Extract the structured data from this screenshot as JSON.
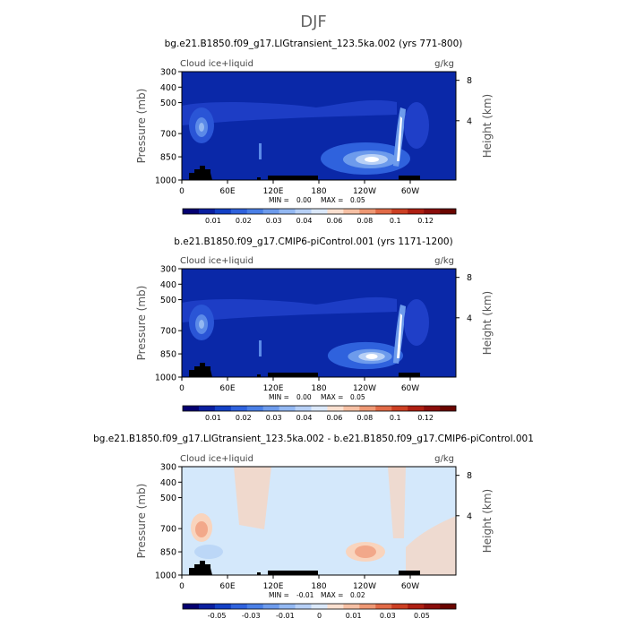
{
  "page": {
    "title": "DJF"
  },
  "colors": {
    "base_blue": "#0a28a8",
    "diff_base": "#d4e8fb",
    "contour_light": "#bcd7f7",
    "warm_light": "#f9d4bd",
    "warm_mid": "#f2a88a",
    "land_mask": "#000000"
  },
  "chart_data": [
    {
      "type": "heatmap",
      "title": "bg.e21.B1850.f09_g17.LIGtransient_123.5ka.002 (yrs 771-800)",
      "field_label": "Cloud ice+liquid",
      "units": "g/kg",
      "ylabel": "Pressure (mb)",
      "ylabel_right": "Height (km)",
      "x_ticks": [
        "0",
        "60E",
        "120E",
        "180",
        "120W",
        "60W"
      ],
      "x_tick_values": [
        0,
        60,
        120,
        180,
        240,
        300
      ],
      "xlim": [
        0,
        360
      ],
      "y_ticks": [
        "300",
        "400",
        "500",
        "700",
        "850",
        "1000"
      ],
      "y_tick_values": [
        300,
        400,
        500,
        700,
        850,
        1000
      ],
      "ylim": [
        300,
        1000
      ],
      "height_ticks": [
        "8",
        "4"
      ],
      "height_tick_pressure": [
        356,
        617
      ],
      "stats": {
        "min_label": "MIN =",
        "min": "0.00",
        "max_label": "MAX =",
        "max": "0.05"
      },
      "colorbar": {
        "labels": [
          "0.01",
          "0.02",
          "0.03",
          "0.04",
          "0.06",
          "0.08",
          "0.1",
          "0.12"
        ],
        "colors": [
          "#040070",
          "#0a1f9f",
          "#1340c5",
          "#2f62dd",
          "#4a7fe6",
          "#6d9bec",
          "#93b8f2",
          "#b7d0f6",
          "#dbe8fa",
          "#fbe0d0",
          "#f6c0a4",
          "#ee9874",
          "#e16a47",
          "#cc3f23",
          "#ae1f12",
          "#8a0d0b",
          "#6a0500"
        ]
      }
    },
    {
      "type": "heatmap",
      "title": "b.e21.B1850.f09_g17.CMIP6-piControl.001 (yrs 1171-1200)",
      "field_label": "Cloud ice+liquid",
      "units": "g/kg",
      "ylabel": "Pressure (mb)",
      "ylabel_right": "Height (km)",
      "x_ticks": [
        "0",
        "60E",
        "120E",
        "180",
        "120W",
        "60W"
      ],
      "x_tick_values": [
        0,
        60,
        120,
        180,
        240,
        300
      ],
      "xlim": [
        0,
        360
      ],
      "y_ticks": [
        "300",
        "400",
        "500",
        "700",
        "850",
        "1000"
      ],
      "y_tick_values": [
        300,
        400,
        500,
        700,
        850,
        1000
      ],
      "ylim": [
        300,
        1000
      ],
      "height_ticks": [
        "8",
        "4"
      ],
      "height_tick_pressure": [
        356,
        617
      ],
      "stats": {
        "min_label": "MIN =",
        "min": "0.00",
        "max_label": "MAX =",
        "max": "0.05"
      },
      "colorbar": {
        "labels": [
          "0.01",
          "0.02",
          "0.03",
          "0.04",
          "0.06",
          "0.08",
          "0.1",
          "0.12"
        ],
        "colors": [
          "#040070",
          "#0a1f9f",
          "#1340c5",
          "#2f62dd",
          "#4a7fe6",
          "#6d9bec",
          "#93b8f2",
          "#b7d0f6",
          "#dbe8fa",
          "#fbe0d0",
          "#f6c0a4",
          "#ee9874",
          "#e16a47",
          "#cc3f23",
          "#ae1f12",
          "#8a0d0b",
          "#6a0500"
        ]
      }
    },
    {
      "type": "heatmap",
      "title": "bg.e21.B1850.f09_g17.LIGtransient_123.5ka.002 - b.e21.B1850.f09_g17.CMIP6-piControl.001",
      "field_label": "Cloud ice+liquid",
      "units": "g/kg",
      "ylabel": "Pressure (mb)",
      "ylabel_right": "Height (km)",
      "x_ticks": [
        "0",
        "60E",
        "120E",
        "180",
        "120W",
        "60W"
      ],
      "x_tick_values": [
        0,
        60,
        120,
        180,
        240,
        300
      ],
      "xlim": [
        0,
        360
      ],
      "y_ticks": [
        "300",
        "400",
        "500",
        "700",
        "850",
        "1000"
      ],
      "y_tick_values": [
        300,
        400,
        500,
        700,
        850,
        1000
      ],
      "ylim": [
        300,
        1000
      ],
      "height_ticks": [
        "8",
        "4"
      ],
      "height_tick_pressure": [
        356,
        617
      ],
      "stats": {
        "min_label": "MIN =",
        "min": "-0.01",
        "max_label": "MAX =",
        "max": "0.02"
      },
      "colorbar": {
        "labels": [
          "-0.05",
          "-0.03",
          "-0.01",
          "0",
          "0.01",
          "0.03",
          "0.05"
        ],
        "colors": [
          "#040070",
          "#0a1f9f",
          "#1340c5",
          "#2f62dd",
          "#4a7fe6",
          "#6d9bec",
          "#93b8f2",
          "#b7d0f6",
          "#dbe8fa",
          "#fbe0d0",
          "#f6c0a4",
          "#ee9874",
          "#e16a47",
          "#cc3f23",
          "#ae1f12",
          "#8a0d0b",
          "#6a0500"
        ]
      }
    }
  ]
}
